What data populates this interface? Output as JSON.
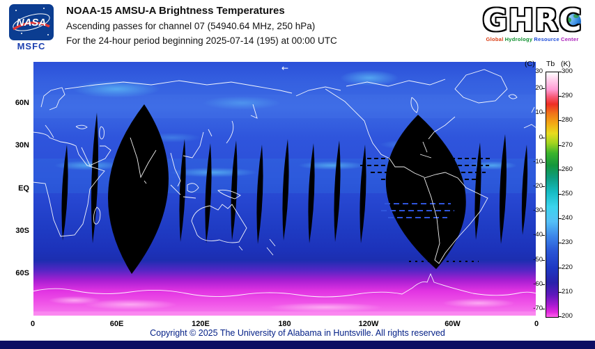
{
  "header": {
    "nasa_logo": {
      "text": "NASA",
      "sub": "MSFC"
    },
    "title_line1": "NOAA-15 AMSU-A Brightness Temperatures",
    "title_line2": "Ascending passes for channel 07 (54940.64 MHz, 250 hPa)",
    "title_line3": "For the 24-hour period beginning 2025-07-14 (195) at 00:00 UTC",
    "ghrc_logo": {
      "letters_left": "GHR",
      "letter_c": "C",
      "tagline_words": [
        {
          "text": "Global",
          "color": "#d93a10"
        },
        {
          "text": "Hydrology",
          "color": "#0c8f2c"
        },
        {
          "text": "Resource",
          "color": "#1a49d8"
        },
        {
          "text": "Center",
          "color": "#a81ab8"
        }
      ]
    }
  },
  "map": {
    "arrow": "←"
  },
  "chart_data": {
    "type": "heatmap",
    "title": "NOAA-15 AMSU-A Brightness Temperatures",
    "subtitle": "Ascending passes for channel 07 (54940.64 MHz, 250 hPa)",
    "period": "For the 24-hour period beginning 2025-07-14 (195) at 00:00 UTC",
    "projection": "equirectangular world map, longitude 0 to 360E (180 at center), latitude 90N to 90S",
    "value_name": "Brightness temperature Tb",
    "units": "K",
    "lat_ticks": [
      {
        "label": "60N",
        "lat": 60
      },
      {
        "label": "30N",
        "lat": 30
      },
      {
        "label": "EQ",
        "lat": 0
      },
      {
        "label": "30S",
        "lat": -30
      },
      {
        "label": "60S",
        "lat": -60
      }
    ],
    "lon_ticks": [
      {
        "label": "0",
        "lon": 0
      },
      {
        "label": "60E",
        "lon": 60
      },
      {
        "label": "120E",
        "lon": 120
      },
      {
        "label": "180",
        "lon": 180
      },
      {
        "label": "120W",
        "lon": 240
      },
      {
        "label": "60W",
        "lon": 300
      },
      {
        "label": "0",
        "lon": 360
      }
    ],
    "colorbar": {
      "header_c": "(C)",
      "header_tb": "Tb",
      "header_k": "(K)",
      "min_k": 200,
      "max_k": 300,
      "kelvin_ticks": [
        300,
        290,
        280,
        270,
        260,
        250,
        240,
        230,
        220,
        210,
        200
      ],
      "celsius_ticks": [
        30,
        20,
        10,
        0,
        -10,
        -20,
        -30,
        -40,
        -50,
        -60,
        -70
      ],
      "stops": [
        {
          "k": 300,
          "color": "#ffffff"
        },
        {
          "k": 297,
          "color": "#ffd2ec"
        },
        {
          "k": 293,
          "color": "#ff9cd4"
        },
        {
          "k": 290,
          "color": "#f85a78"
        },
        {
          "k": 287,
          "color": "#ee2e24"
        },
        {
          "k": 283,
          "color": "#f07818"
        },
        {
          "k": 279,
          "color": "#f2aa14"
        },
        {
          "k": 275,
          "color": "#e8dc1e"
        },
        {
          "k": 271,
          "color": "#a0d420"
        },
        {
          "k": 267,
          "color": "#3cb42c"
        },
        {
          "k": 262,
          "color": "#14963c"
        },
        {
          "k": 257,
          "color": "#0e9c7e"
        },
        {
          "k": 251,
          "color": "#16bcc4"
        },
        {
          "k": 245,
          "color": "#3cd4ee"
        },
        {
          "k": 239,
          "color": "#54c0f6"
        },
        {
          "k": 233,
          "color": "#3c86ea"
        },
        {
          "k": 227,
          "color": "#2a56d6"
        },
        {
          "k": 220,
          "color": "#1e38c2"
        },
        {
          "k": 214,
          "color": "#2a22aa"
        },
        {
          "k": 209,
          "color": "#6018bc"
        },
        {
          "k": 205,
          "color": "#a61ad0"
        },
        {
          "k": 202,
          "color": "#e028de"
        },
        {
          "k": 200,
          "color": "#ff62ea"
        }
      ]
    },
    "map_notes": "Ocean/land field is mostly 215-240 K (blues/cyan); Antarctic region reaches 200-210 K (magenta/pink). Black lens-shaped regions are data gaps between ascending satellite swaths (2 wide gaps and ~13 narrow gaps); white lines are coastlines drawn over the data."
  },
  "footer": {
    "copyright": "Copyright © 2025 The University of Alabama in Huntsville. All rights reserved"
  }
}
